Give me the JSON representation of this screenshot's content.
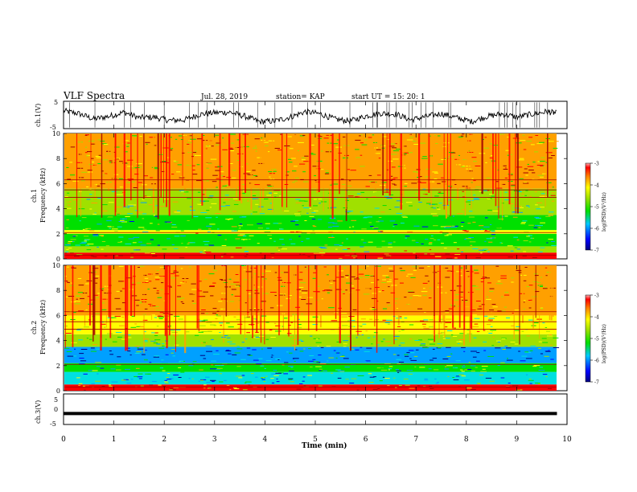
{
  "header": {
    "title": "VLF Spectra",
    "date": "Jul. 28, 2019",
    "station": "station= KAP",
    "start": "start  UT =   15: 20: 1"
  },
  "chart_data": [
    {
      "type": "line",
      "panel": "ch1-waveform",
      "ylabel": "ch.1(V)",
      "ylim": [
        -5,
        5
      ],
      "yticks": [
        "5",
        "-5"
      ],
      "xlim": [
        0,
        10
      ],
      "series": [
        {
          "x": [
            0,
            0.3,
            0.6,
            0.9,
            1.2,
            1.5,
            1.8,
            2.1,
            2.4,
            2.7,
            3.0,
            3.3,
            3.6,
            3.9,
            4.2,
            4.5,
            4.8,
            5.1,
            5.4,
            5.7,
            6.0,
            6.3,
            6.6,
            6.9,
            7.2,
            7.5,
            7.8,
            8.1,
            8.4,
            8.7,
            9.0,
            9.3,
            9.6,
            9.8
          ],
          "values": [
            1.5,
            0.5,
            -1.5,
            -0.5,
            1.0,
            -1.0,
            -0.8,
            -2.0,
            -1.8,
            0.2,
            0.8,
            1.0,
            -0.5,
            -2.5,
            -2.2,
            -0.8,
            1.2,
            0.4,
            -1.6,
            -2.2,
            -0.4,
            0.6,
            0.3,
            -1.8,
            -0.6,
            0.5,
            -1.0,
            -2.4,
            -0.6,
            0.4,
            -0.8,
            0.3,
            1.2,
            0.6
          ]
        }
      ]
    },
    {
      "type": "heatmap",
      "panel": "ch1-spectrogram",
      "ylabel": "ch.1\nFrequency (kHz)",
      "ylim": [
        0,
        10
      ],
      "yticks": [
        "0",
        "2",
        "4",
        "6",
        "8",
        "10"
      ],
      "xlim": [
        0,
        10
      ],
      "bands": [
        {
          "from": 0,
          "to": 0.5,
          "level": -3.6
        },
        {
          "from": 0.5,
          "to": 1.0,
          "level": -4.8
        },
        {
          "from": 1.0,
          "to": 2.0,
          "level": -5.2
        },
        {
          "from": 2.0,
          "to": 2.3,
          "level": -4.6
        },
        {
          "from": 2.3,
          "to": 3.5,
          "level": -5.2
        },
        {
          "from": 3.5,
          "to": 4.9,
          "level": -5.0
        },
        {
          "from": 4.9,
          "to": 5.6,
          "level": -4.7
        },
        {
          "from": 5.6,
          "to": 10.0,
          "level": -4.2
        }
      ],
      "colorbar": {
        "label": "log(PSD)(V²/Hz)",
        "ticks": [
          "-3",
          "-4",
          "-5",
          "-6",
          "-7"
        ],
        "range": [
          -7,
          -3
        ]
      }
    },
    {
      "type": "heatmap",
      "panel": "ch2-spectrogram",
      "ylabel": "ch.2\nFrequency (kHz)",
      "ylim": [
        0,
        10
      ],
      "yticks": [
        "0",
        "2",
        "4",
        "6",
        "8",
        "10"
      ],
      "xlim": [
        0,
        10
      ],
      "bands": [
        {
          "from": 0,
          "to": 0.5,
          "level": -3.8
        },
        {
          "from": 0.5,
          "to": 1.5,
          "level": -5.6
        },
        {
          "from": 1.5,
          "to": 2.2,
          "level": -5.3
        },
        {
          "from": 2.2,
          "to": 3.5,
          "level": -6.0
        },
        {
          "from": 3.5,
          "to": 4.5,
          "level": -5.0
        },
        {
          "from": 4.5,
          "to": 6.0,
          "level": -4.6
        },
        {
          "from": 6.0,
          "to": 10.0,
          "level": -4.0
        }
      ],
      "colorbar": {
        "label": "log(PSD)(V²/Hz)",
        "ticks": [
          "-3",
          "-4",
          "-5",
          "-6",
          "-7"
        ],
        "range": [
          -7,
          -3
        ]
      }
    },
    {
      "type": "line",
      "panel": "ch3-waveform",
      "ylabel": "ch.3(V)",
      "ylim": [
        -5,
        5
      ],
      "yticks": [
        "5",
        "0",
        "-5"
      ],
      "xlim": [
        0,
        10
      ],
      "xlabel": "Time (min)",
      "xticks": [
        "0",
        "1",
        "2",
        "3",
        "4",
        "5",
        "6",
        "7",
        "8",
        "9",
        "10"
      ],
      "series": [
        {
          "x": [
            0,
            9.8
          ],
          "values": [
            -1.4,
            -1.4
          ]
        }
      ]
    }
  ],
  "colors": {
    "colormap": [
      "#000080",
      "#0000ff",
      "#00a0ff",
      "#00e0e0",
      "#00e000",
      "#a0e000",
      "#ffff00",
      "#ffa000",
      "#ff0000",
      "#a00000"
    ],
    "line": "#000000"
  }
}
